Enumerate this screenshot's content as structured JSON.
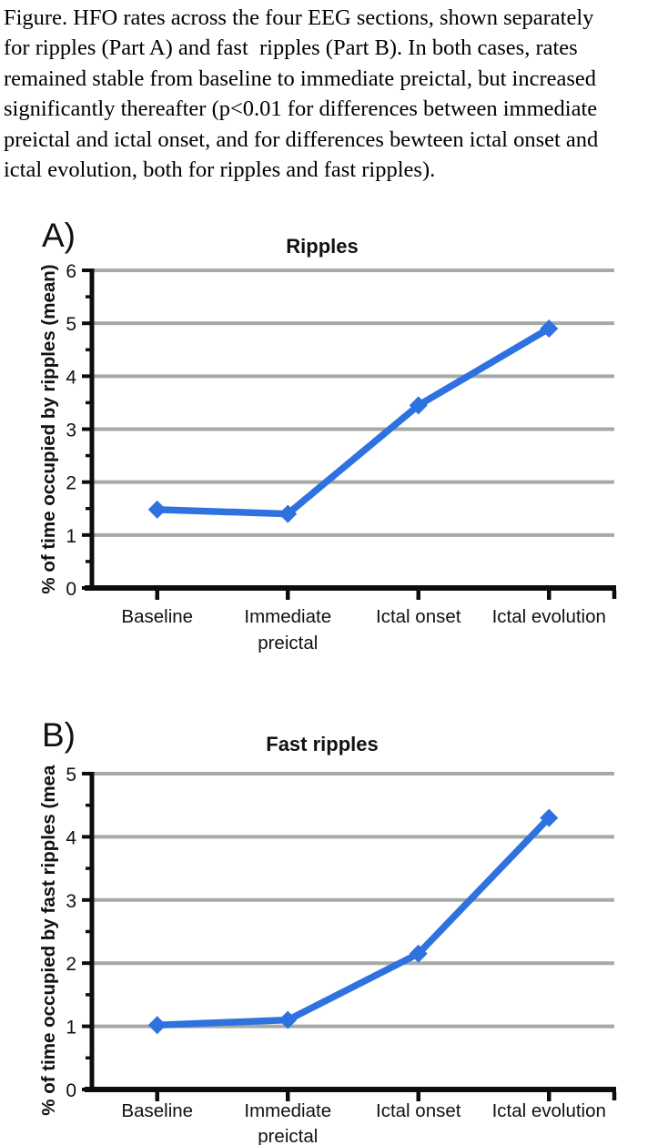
{
  "caption": "Figure. HFO rates across the four EEG sections, shown separately\nfor ripples (Part A) and fast  ripples (Part B). In both cases, rates\nremained stable from baseline to immediate preictal, but increased\nsignificantly thereafter (p<0.01 for differences between immediate\npreictal and ictal onset, and for differences bewteen ictal onset and\nictal evolution, both for ripples and fast ripples).",
  "colors": {
    "line": "#2e72e0",
    "grid": "#a5aaa6",
    "axis": "#0d0d0d",
    "text": "#111111"
  },
  "chart_data": [
    {
      "type": "line",
      "panel_label": "A)",
      "title": "Ripples",
      "ylabel": "% of time occupied by ripples (mean)",
      "xlabel": "",
      "categories": [
        "Baseline",
        "Immediate\npreictal",
        "Ictal onset",
        "Ictal evolution"
      ],
      "series": [
        {
          "name": "Ripples",
          "values": [
            1.48,
            1.4,
            3.45,
            4.9
          ]
        }
      ],
      "ylim": [
        0,
        6
      ],
      "ytick_step": 1,
      "yminor_step": 0.5,
      "grid": true,
      "legend": "none",
      "marker": "diamond"
    },
    {
      "type": "line",
      "panel_label": "B)",
      "title": "Fast ripples",
      "ylabel": "% of time occupied by fast ripples (mean)",
      "xlabel": "",
      "categories": [
        "Baseline",
        "Immediate\npreictal",
        "Ictal onset",
        "Ictal evolution"
      ],
      "series": [
        {
          "name": "Fast ripples",
          "values": [
            1.02,
            1.1,
            2.15,
            4.3
          ]
        }
      ],
      "ylim": [
        0,
        5
      ],
      "ytick_step": 1,
      "yminor_step": 0.5,
      "grid": true,
      "legend": "none",
      "marker": "diamond"
    }
  ]
}
